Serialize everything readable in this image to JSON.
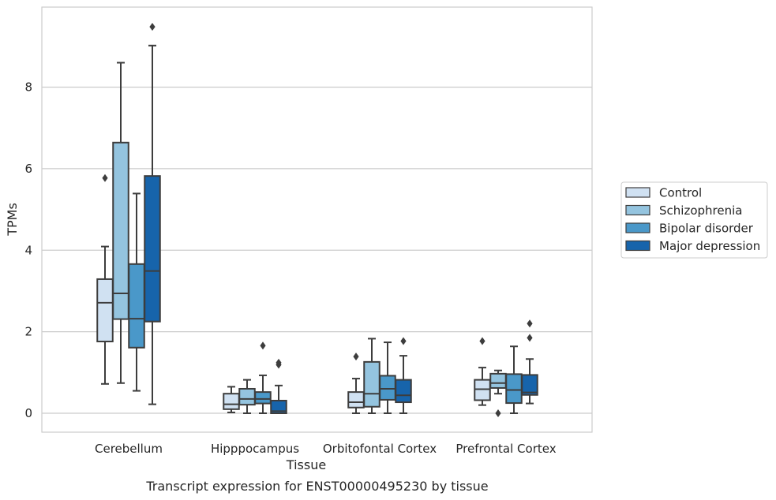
{
  "caption": "Transcript expression for ENST00000495230 by tissue",
  "chart_data": {
    "type": "boxplot",
    "title": "",
    "xlabel": "Tissue",
    "ylabel": "TPMs",
    "ylim": [
      -0.45,
      9.95
    ],
    "yticks": [
      0,
      2,
      4,
      6,
      8
    ],
    "grid": "horizontal",
    "legend_placement": "right",
    "categories": [
      "Cerebellum",
      "Hipppocampus",
      "Orbitofontal Cortex",
      "Prefrontal Cortex"
    ],
    "series": [
      {
        "name": "Control",
        "color": "#d0e1f2",
        "boxes": [
          {
            "whislo": 0.72,
            "q1": 1.76,
            "med": 2.71,
            "q3": 3.29,
            "whishi": 4.09,
            "fliers": [
              5.77
            ]
          },
          {
            "whislo": 0.02,
            "q1": 0.1,
            "med": 0.22,
            "q3": 0.48,
            "whishi": 0.65,
            "fliers": []
          },
          {
            "whislo": 0.0,
            "q1": 0.14,
            "med": 0.27,
            "q3": 0.52,
            "whishi": 0.85,
            "fliers": [
              1.39
            ]
          },
          {
            "whislo": 0.2,
            "q1": 0.32,
            "med": 0.59,
            "q3": 0.82,
            "whishi": 1.12,
            "fliers": [
              1.77
            ]
          }
        ]
      },
      {
        "name": "Schizophrenia",
        "color": "#94c4df",
        "boxes": [
          {
            "whislo": 0.74,
            "q1": 2.31,
            "med": 2.94,
            "q3": 6.64,
            "whishi": 8.6,
            "fliers": []
          },
          {
            "whislo": 0.0,
            "q1": 0.21,
            "med": 0.35,
            "q3": 0.6,
            "whishi": 0.82,
            "fliers": []
          },
          {
            "whislo": 0.0,
            "q1": 0.16,
            "med": 0.48,
            "q3": 1.26,
            "whishi": 1.83,
            "fliers": []
          },
          {
            "whislo": 0.48,
            "q1": 0.62,
            "med": 0.74,
            "q3": 0.97,
            "whishi": 1.05,
            "fliers": [
              0.0
            ]
          }
        ]
      },
      {
        "name": "Bipolar disorder",
        "color": "#4a98c9",
        "boxes": [
          {
            "whislo": 0.55,
            "q1": 1.61,
            "med": 2.32,
            "q3": 3.66,
            "whishi": 5.39,
            "fliers": []
          },
          {
            "whislo": 0.0,
            "q1": 0.24,
            "med": 0.35,
            "q3": 0.52,
            "whishi": 0.93,
            "fliers": [
              1.66
            ]
          },
          {
            "whislo": 0.0,
            "q1": 0.33,
            "med": 0.6,
            "q3": 0.92,
            "whishi": 1.74,
            "fliers": []
          },
          {
            "whislo": 0.0,
            "q1": 0.25,
            "med": 0.57,
            "q3": 0.96,
            "whishi": 1.64,
            "fliers": []
          }
        ]
      },
      {
        "name": "Major depression",
        "color": "#1764ab",
        "boxes": [
          {
            "whislo": 0.22,
            "q1": 2.25,
            "med": 3.49,
            "q3": 5.82,
            "whishi": 9.02,
            "fliers": [
              9.48
            ]
          },
          {
            "whislo": 0.0,
            "q1": 0.0,
            "med": 0.05,
            "q3": 0.31,
            "whishi": 0.68,
            "fliers": [
              1.19,
              1.24
            ]
          },
          {
            "whislo": 0.0,
            "q1": 0.27,
            "med": 0.44,
            "q3": 0.82,
            "whishi": 1.41,
            "fliers": [
              1.77
            ]
          },
          {
            "whislo": 0.24,
            "q1": 0.45,
            "med": 0.51,
            "q3": 0.94,
            "whishi": 1.33,
            "fliers": [
              1.85,
              2.2
            ]
          }
        ]
      }
    ]
  }
}
